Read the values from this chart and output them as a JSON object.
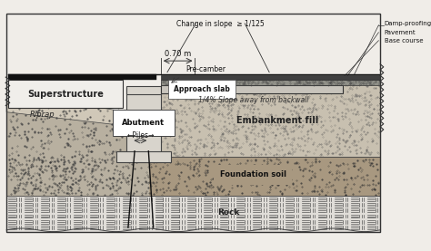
{
  "labels": {
    "superstructure": "Superstructure",
    "approach_slab": "Approach slab",
    "pre_camber": "Pre-camber",
    "abutment": "Abutment",
    "piles": "←Piles→",
    "riprap": "Riprap",
    "embankment": "Embankment fill",
    "foundation": "Foundation soil",
    "rock": "Rock",
    "slope": "1/4% Slope away from backwall",
    "change_slope": "Change in slope  ≥ 1/125",
    "damp_proofing": "Damp-proofing",
    "pavement": "Pavement",
    "base_course": "Base course",
    "dim_070": "0.70 m"
  },
  "colors": {
    "white": "#ffffff",
    "light_gray": "#e8e8e4",
    "medium_gray": "#c8c4bc",
    "dark_gray": "#a0988a",
    "very_dark": "#333333",
    "black": "#111111",
    "rock_bg": "#dcdad6",
    "embankment": "#c0b8a8",
    "foundation": "#989080",
    "riprap_light": "#b8b0a0",
    "pavement_dark": "#282828",
    "base_med": "#787068"
  }
}
